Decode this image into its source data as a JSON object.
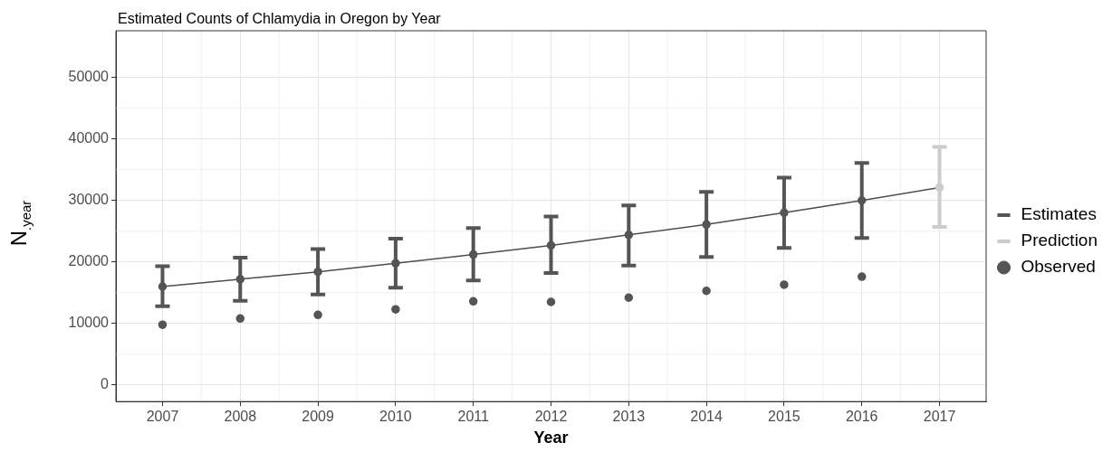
{
  "chart_data": {
    "type": "scatter",
    "title": "Estimated Counts of Chlamydia in Oregon by Year",
    "xlabel": "Year",
    "ylabel": "N$_{.year}$",
    "xlim": [
      2006.4,
      2017.6
    ],
    "xticks": [
      2007,
      2008,
      2009,
      2010,
      2011,
      2012,
      2013,
      2014,
      2015,
      2016,
      2017
    ],
    "ylim": [
      -2700,
      57600
    ],
    "yticks": [
      0,
      10000,
      20000,
      30000,
      40000,
      50000
    ],
    "grid": true,
    "legend": "right",
    "series": [
      {
        "type": "line",
        "marker": "none",
        "color": "#4d4d4d",
        "x": [
          2007,
          2008,
          2009,
          2010,
          2011,
          2012,
          2013,
          2014,
          2015,
          2016,
          2017
        ],
        "values": [
          16000,
          17200,
          18400,
          19800,
          21200,
          22700,
          24400,
          26100,
          28000,
          30000,
          32100
        ]
      },
      {
        "name": "Estimates",
        "type": "scatter",
        "marker": "circle",
        "color": "#555555",
        "x": [
          2007,
          2008,
          2009,
          2010,
          2011,
          2012,
          2013,
          2014,
          2015,
          2016
        ],
        "values": [
          16000,
          17200,
          18400,
          19800,
          21200,
          22700,
          24400,
          26100,
          28000,
          30000
        ],
        "errors": [
          [
            12800,
            19300
          ],
          [
            13700,
            20700
          ],
          [
            14700,
            22100
          ],
          [
            15800,
            23800
          ],
          [
            17000,
            25500
          ],
          [
            18200,
            27400
          ],
          [
            19400,
            29200
          ],
          [
            20800,
            31400
          ],
          [
            22300,
            33700
          ],
          [
            23900,
            36100
          ]
        ]
      },
      {
        "name": "Prediction",
        "type": "scatter",
        "marker": "circle",
        "color": "#cccccc",
        "x": [
          2017
        ],
        "values": [
          32100
        ],
        "errors": [
          [
            25700,
            38700
          ]
        ]
      },
      {
        "name": "Observed",
        "type": "scatter",
        "marker": "circle",
        "color": "#555555",
        "x": [
          2007,
          2008,
          2009,
          2010,
          2011,
          2012,
          2013,
          2014,
          2015,
          2016
        ],
        "values": [
          9800,
          10800,
          11400,
          12300,
          13600,
          13500,
          14200,
          15300,
          16300,
          17600
        ]
      }
    ]
  }
}
